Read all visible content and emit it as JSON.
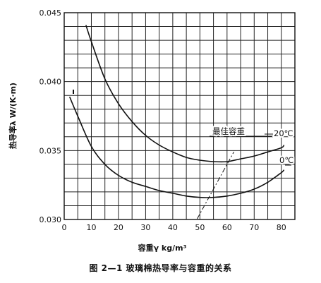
{
  "chart_data": {
    "type": "line",
    "caption": "图 2—1  玻璃棉热导率与容重的关系",
    "xlabel": "容重γ  kg/m³",
    "ylabel": "热导率λ  W/(K·m)",
    "xlim": [
      0,
      85
    ],
    "ylim": [
      0.03,
      0.045
    ],
    "xticks": [
      "0",
      "10",
      "20",
      "30",
      "40",
      "50",
      "60",
      "70",
      "80"
    ],
    "yticks": [
      "0.030",
      "0.035",
      "0.040",
      "0.045"
    ],
    "grid": true,
    "annotations": {
      "optimum": "最佳容重"
    },
    "series": [
      {
        "name": "20℃",
        "x": [
          8,
          10,
          15,
          20,
          25,
          30,
          35,
          40,
          45,
          50,
          55,
          60,
          65,
          70,
          75,
          80,
          81
        ],
        "y": [
          0.0441,
          0.0429,
          0.0402,
          0.0384,
          0.0371,
          0.0361,
          0.0354,
          0.0349,
          0.0345,
          0.0343,
          0.0342,
          0.0342,
          0.0344,
          0.0346,
          0.0349,
          0.0352,
          0.0354
        ]
      },
      {
        "name": "0℃",
        "x": [
          2,
          5,
          10,
          15,
          20,
          25,
          30,
          35,
          40,
          45,
          50,
          55,
          60,
          65,
          70,
          75,
          80,
          81
        ],
        "y": [
          0.0389,
          0.0375,
          0.0353,
          0.034,
          0.0332,
          0.0327,
          0.0324,
          0.0321,
          0.0319,
          0.0317,
          0.0316,
          0.0316,
          0.0317,
          0.0319,
          0.0322,
          0.0327,
          0.0334,
          0.0336
        ]
      }
    ]
  }
}
